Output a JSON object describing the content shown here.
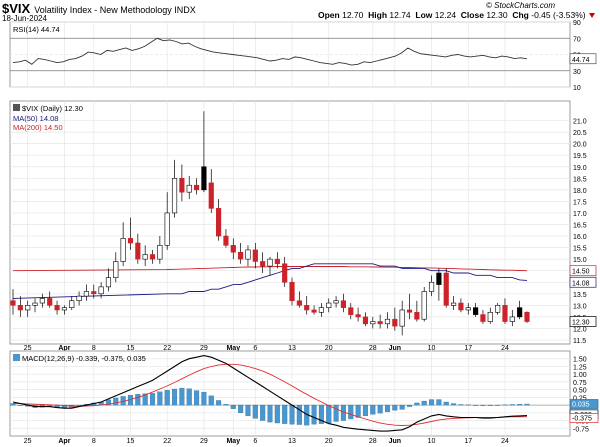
{
  "header": {
    "symbol": "$VIX",
    "description": "Volatility Index - New Methodology INDX",
    "date": "18-Jun-2024",
    "open_label": "Open",
    "open": "12.70",
    "high_label": "High",
    "high": "12.74",
    "low_label": "Low",
    "low": "12.24",
    "close_label": "Close",
    "close": "12.30",
    "chg_label": "Chg",
    "chg": "-0.45 (-3.53%)",
    "copyright": "© StockCharts.com"
  },
  "colors": {
    "up": "#ffffff",
    "down": "#cc2229",
    "ma50": "#1a1a80",
    "ma200": "#cc2229",
    "macd_line": "#000000",
    "signal_line": "#e03030",
    "histogram": "#4a96cf"
  },
  "chart_data": [
    {
      "type": "line",
      "name": "rsi-panel",
      "legend": "RSI(14) 44.74",
      "ylim": [
        10,
        90
      ],
      "yticks": [
        10,
        30,
        50,
        70,
        90
      ],
      "reference_lines": [
        30,
        70
      ],
      "last_value_label": "44.74",
      "values": [
        40,
        41,
        43,
        38,
        45,
        44,
        42,
        40,
        41,
        44,
        45,
        48,
        53,
        52,
        50,
        55,
        54,
        56,
        58,
        55,
        57,
        60,
        65,
        70,
        67,
        68,
        66,
        63,
        64,
        60,
        57,
        55,
        53,
        52,
        51,
        50,
        49,
        48,
        47,
        46,
        44,
        42,
        43,
        45,
        44,
        47,
        46,
        44,
        42,
        40,
        39,
        38,
        40,
        39,
        37,
        38,
        41,
        40,
        42,
        44,
        46,
        48,
        52,
        58,
        54,
        51,
        50,
        49,
        48,
        47,
        49,
        50,
        48,
        47,
        48,
        49,
        47,
        46,
        48,
        47,
        45,
        46,
        44.74
      ]
    },
    {
      "type": "candlestick",
      "name": "price-panel",
      "legend": "$VIX (Daily) 12.30",
      "ma50_legend": "MA(50) 14.08",
      "ma200_legend": "MA(200) 14.50",
      "ylim": [
        11.5,
        21.5
      ],
      "yticks": [
        11.5,
        12.0,
        12.5,
        13.0,
        13.5,
        14.0,
        14.5,
        15.0,
        15.5,
        16.0,
        16.5,
        17.0,
        17.5,
        18.0,
        18.5,
        19.0,
        19.5,
        20.0,
        20.5,
        21.0
      ],
      "ma50_label": "14.08",
      "ma200_label": "14.50",
      "last_label": "12.30",
      "xticks": [
        "25",
        "Apr",
        "8",
        "15",
        "22",
        "29",
        "May",
        "6",
        "13",
        "20",
        "28",
        "Jun",
        "10",
        "17",
        "24"
      ],
      "candles": [
        [
          13.2,
          13.7,
          12.6,
          13.0
        ],
        [
          13.0,
          13.4,
          12.5,
          12.8
        ],
        [
          12.8,
          13.2,
          12.5,
          13.0
        ],
        [
          13.0,
          13.3,
          12.7,
          13.1
        ],
        [
          13.1,
          13.5,
          12.9,
          13.3
        ],
        [
          13.3,
          13.6,
          12.9,
          13.0
        ],
        [
          13.0,
          13.2,
          12.6,
          12.8
        ],
        [
          12.8,
          13.0,
          12.6,
          12.9
        ],
        [
          12.9,
          13.4,
          12.8,
          13.2
        ],
        [
          13.2,
          13.6,
          13.0,
          13.4
        ],
        [
          13.4,
          13.9,
          13.2,
          13.6
        ],
        [
          13.6,
          13.9,
          13.3,
          13.5
        ],
        [
          13.5,
          14.0,
          13.3,
          13.8
        ],
        [
          13.8,
          14.6,
          13.6,
          14.2
        ],
        [
          14.2,
          15.3,
          14.0,
          14.9
        ],
        [
          14.9,
          16.6,
          14.7,
          15.9
        ],
        [
          15.9,
          16.8,
          15.4,
          15.7
        ],
        [
          15.7,
          16.1,
          14.8,
          15.0
        ],
        [
          15.0,
          15.6,
          14.7,
          15.2
        ],
        [
          15.2,
          15.4,
          14.8,
          15.0
        ],
        [
          15.0,
          16.0,
          14.8,
          15.6
        ],
        [
          15.6,
          17.9,
          15.4,
          17.0
        ],
        [
          17.0,
          19.3,
          16.8,
          18.5
        ],
        [
          18.5,
          19.1,
          17.5,
          17.9
        ],
        [
          17.9,
          18.6,
          17.6,
          18.2
        ],
        [
          18.2,
          18.5,
          17.8,
          18.0
        ],
        [
          18.0,
          21.4,
          17.9,
          19.0
        ],
        [
          18.3,
          18.9,
          17.0,
          17.2
        ],
        [
          17.2,
          17.6,
          15.8,
          16.0
        ],
        [
          16.0,
          16.3,
          15.5,
          15.6
        ],
        [
          15.6,
          15.9,
          15.0,
          15.3
        ],
        [
          15.3,
          15.7,
          14.8,
          15.0
        ],
        [
          15.0,
          15.6,
          14.7,
          15.4
        ],
        [
          15.4,
          15.7,
          14.6,
          14.9
        ],
        [
          14.9,
          15.3,
          14.4,
          14.7
        ],
        [
          14.7,
          15.1,
          14.3,
          15.0
        ],
        [
          15.0,
          15.3,
          14.6,
          14.8
        ],
        [
          14.8,
          15.1,
          13.8,
          14.0
        ],
        [
          14.0,
          14.2,
          13.0,
          13.2
        ],
        [
          13.2,
          13.6,
          12.9,
          13.0
        ],
        [
          13.0,
          13.4,
          12.6,
          12.8
        ],
        [
          12.8,
          13.0,
          12.6,
          12.7
        ],
        [
          12.7,
          13.1,
          12.5,
          12.9
        ],
        [
          12.9,
          13.3,
          12.7,
          13.1
        ],
        [
          13.1,
          13.4,
          12.9,
          13.2
        ],
        [
          13.2,
          13.5,
          12.7,
          12.9
        ],
        [
          12.9,
          13.1,
          12.4,
          12.6
        ],
        [
          12.6,
          12.9,
          12.3,
          12.5
        ],
        [
          12.5,
          12.7,
          12.1,
          12.2
        ],
        [
          12.2,
          12.5,
          12.0,
          12.3
        ],
        [
          12.3,
          12.6,
          12.0,
          12.2
        ],
        [
          12.2,
          12.7,
          12.0,
          12.4
        ],
        [
          12.4,
          12.9,
          11.9,
          12.1
        ],
        [
          12.1,
          13.2,
          11.7,
          12.8
        ],
        [
          12.8,
          13.5,
          12.4,
          12.7
        ],
        [
          12.7,
          13.2,
          12.3,
          12.4
        ],
        [
          12.4,
          13.8,
          12.3,
          13.6
        ],
        [
          13.6,
          14.3,
          13.4,
          14.0
        ],
        [
          13.9,
          14.6,
          13.2,
          14.4
        ],
        [
          14.4,
          14.6,
          12.9,
          13.0
        ],
        [
          13.0,
          13.4,
          12.8,
          13.1
        ],
        [
          13.1,
          13.3,
          12.7,
          12.8
        ],
        [
          12.8,
          13.1,
          12.6,
          12.9
        ],
        [
          12.9,
          13.1,
          12.5,
          12.6
        ],
        [
          12.6,
          12.8,
          12.2,
          12.3
        ],
        [
          12.3,
          12.9,
          12.2,
          12.7
        ],
        [
          12.7,
          13.1,
          12.6,
          13.0
        ],
        [
          13.0,
          13.3,
          12.2,
          12.3
        ],
        [
          12.3,
          12.8,
          12.1,
          12.5
        ],
        [
          12.5,
          13.2,
          12.4,
          12.9
        ],
        [
          12.7,
          12.74,
          12.24,
          12.3
        ]
      ],
      "ma50": [
        13.5,
        13.5,
        13.5,
        13.6,
        13.6,
        13.6,
        13.7,
        13.7,
        13.8,
        13.9,
        13.9,
        14.0,
        14.1,
        14.2,
        14.3,
        14.4,
        14.5,
        14.6,
        14.6,
        14.7,
        14.8,
        14.8,
        14.8,
        14.8,
        14.8,
        14.8,
        14.8,
        14.8,
        14.8,
        14.7,
        14.7,
        14.7,
        14.6,
        14.6,
        14.6,
        14.6,
        14.5,
        14.5,
        14.5,
        14.4,
        14.4,
        14.4,
        14.3,
        14.3,
        14.3,
        14.2,
        14.2,
        14.2,
        14.1,
        14.08
      ],
      "ma200": [
        14.55,
        14.56,
        14.57,
        14.58,
        14.59,
        14.6,
        14.61,
        14.62,
        14.63,
        14.64,
        14.65,
        14.66,
        14.66,
        14.67,
        14.67,
        14.68,
        14.68,
        14.68,
        14.68,
        14.68,
        14.68,
        14.68,
        14.68,
        14.68,
        14.68,
        14.67,
        14.67,
        14.67,
        14.66,
        14.66,
        14.65,
        14.65,
        14.64,
        14.64,
        14.63,
        14.62,
        14.62,
        14.61,
        14.6,
        14.59,
        14.58,
        14.57,
        14.56,
        14.55,
        14.54,
        14.53,
        14.52,
        14.52,
        14.51,
        14.5
      ]
    },
    {
      "type": "line",
      "name": "macd-panel",
      "legend_macd": "MACD(12,26,9) -0.339, -0.375, 0.035",
      "ylim": [
        -1.0,
        1.75
      ],
      "yticks": [
        -0.75,
        -0.5,
        -0.25,
        0.0,
        0.25,
        0.5,
        0.75,
        1.0,
        1.25,
        1.5
      ],
      "macd_label": "-0.339",
      "signal_label": "-0.375",
      "hist_label": "0.035",
      "xticks": [
        "25",
        "Apr",
        "8",
        "15",
        "22",
        "29",
        "May",
        "6",
        "13",
        "20",
        "28",
        "Jun",
        "10",
        "17",
        "24"
      ],
      "macd": [
        0.1,
        0.05,
        0.0,
        -0.05,
        -0.05,
        -0.05,
        -0.08,
        -0.1,
        -0.1,
        -0.05,
        0.0,
        0.05,
        0.1,
        0.2,
        0.3,
        0.4,
        0.5,
        0.6,
        0.7,
        0.8,
        0.95,
        1.1,
        1.25,
        1.4,
        1.5,
        1.55,
        1.6,
        1.55,
        1.45,
        1.35,
        1.2,
        1.05,
        0.9,
        0.75,
        0.6,
        0.45,
        0.3,
        0.15,
        0.0,
        -0.15,
        -0.3,
        -0.4,
        -0.5,
        -0.6,
        -0.65,
        -0.72,
        -0.75,
        -0.78,
        -0.8,
        -0.82,
        -0.84,
        -0.84,
        -0.82,
        -0.8,
        -0.7,
        -0.55,
        -0.45,
        -0.35,
        -0.3,
        -0.35,
        -0.38,
        -0.4,
        -0.4,
        -0.4,
        -0.42,
        -0.42,
        -0.4,
        -0.38,
        -0.36,
        -0.35,
        -0.339
      ],
      "signal": [
        0.05,
        0.05,
        0.04,
        0.03,
        0.02,
        0.01,
        0.0,
        -0.02,
        -0.03,
        -0.04,
        -0.03,
        -0.02,
        0.0,
        0.03,
        0.07,
        0.12,
        0.18,
        0.25,
        0.33,
        0.42,
        0.52,
        0.62,
        0.73,
        0.85,
        0.97,
        1.08,
        1.18,
        1.25,
        1.3,
        1.32,
        1.32,
        1.3,
        1.25,
        1.18,
        1.1,
        1.0,
        0.88,
        0.75,
        0.62,
        0.48,
        0.35,
        0.22,
        0.1,
        -0.02,
        -0.12,
        -0.22,
        -0.3,
        -0.38,
        -0.45,
        -0.52,
        -0.58,
        -0.62,
        -0.65,
        -0.66,
        -0.65,
        -0.62,
        -0.58,
        -0.53,
        -0.48,
        -0.45,
        -0.43,
        -0.42,
        -0.41,
        -0.4,
        -0.4,
        -0.4,
        -0.4,
        -0.39,
        -0.38,
        -0.38,
        -0.375
      ],
      "histogram": [
        0.05,
        0.0,
        -0.04,
        -0.08,
        -0.07,
        -0.06,
        -0.08,
        -0.08,
        -0.07,
        -0.01,
        0.03,
        0.07,
        0.1,
        0.17,
        0.23,
        0.28,
        0.32,
        0.35,
        0.37,
        0.38,
        0.43,
        0.48,
        0.52,
        0.55,
        0.53,
        0.47,
        0.42,
        0.3,
        0.15,
        0.03,
        -0.12,
        -0.25,
        -0.35,
        -0.43,
        -0.5,
        -0.55,
        -0.58,
        -0.6,
        -0.62,
        -0.63,
        -0.65,
        -0.62,
        -0.6,
        -0.58,
        -0.53,
        -0.5,
        -0.45,
        -0.4,
        -0.35,
        -0.3,
        -0.26,
        -0.22,
        -0.17,
        -0.14,
        -0.05,
        0.07,
        0.13,
        0.18,
        0.18,
        0.1,
        0.05,
        0.02,
        0.01,
        0.0,
        -0.02,
        -0.02,
        0.0,
        0.01,
        0.02,
        0.03,
        0.035
      ]
    }
  ]
}
